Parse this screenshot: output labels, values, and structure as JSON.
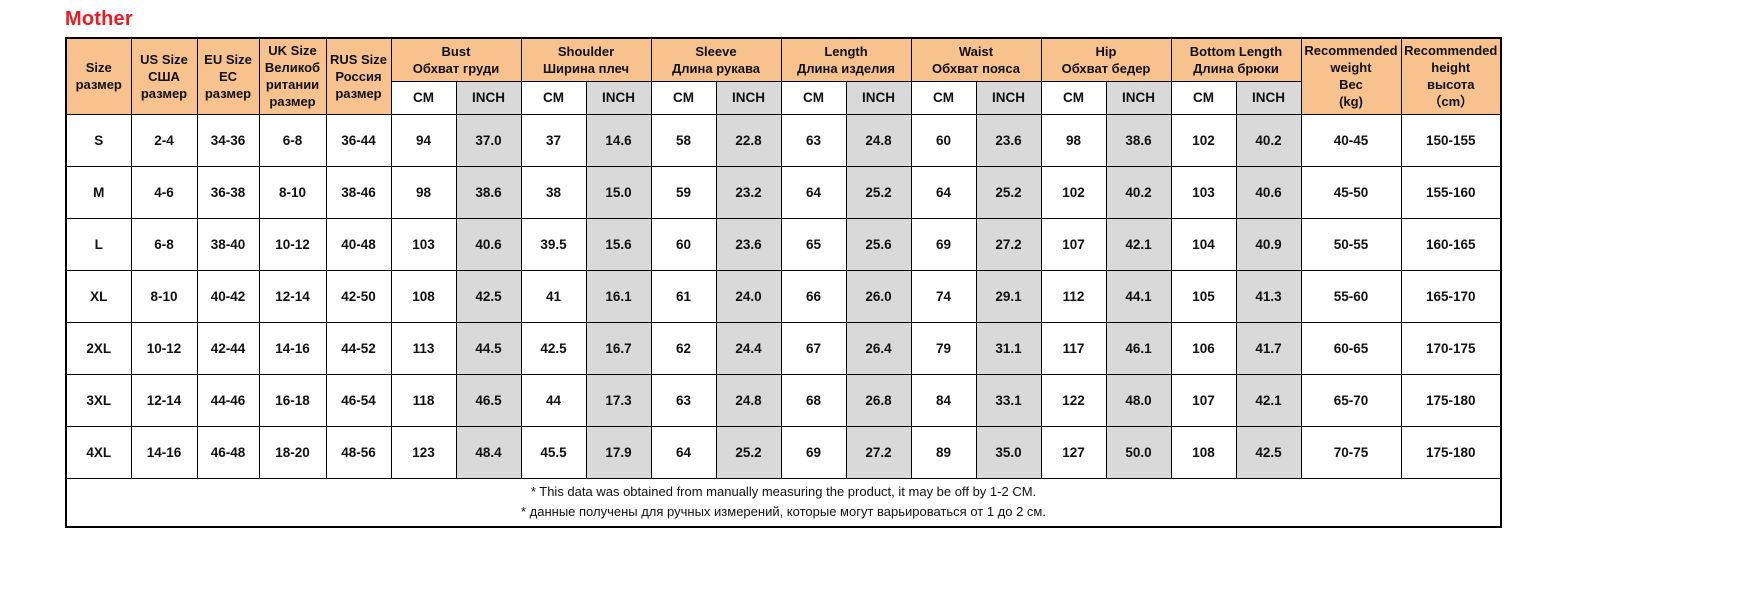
{
  "title": "Mother",
  "colors": {
    "title_red": "#ED1C24",
    "header_bg": "#F7C28D",
    "inch_bg": "#D9D9D9",
    "border": "#000000"
  },
  "chart_data": {
    "type": "table",
    "title": "Mother",
    "unit_headers": [
      "CM",
      "INCH"
    ],
    "columns": [
      {
        "type": "single",
        "lines": [
          "Size",
          "размер"
        ]
      },
      {
        "type": "single",
        "lines": [
          "US Size",
          "США",
          "размер"
        ]
      },
      {
        "type": "single",
        "lines": [
          "EU Size",
          "EC",
          "размер"
        ]
      },
      {
        "type": "single",
        "lines": [
          "UK Size",
          "Великоб",
          "ритании",
          "размер"
        ]
      },
      {
        "type": "single",
        "lines": [
          "RUS Size",
          "Россия",
          "размер"
        ]
      },
      {
        "type": "cm_inch",
        "lines": [
          "Bust",
          "Обхват груди"
        ]
      },
      {
        "type": "cm_inch",
        "lines": [
          "Shoulder",
          "Ширина плеч"
        ]
      },
      {
        "type": "cm_inch",
        "lines": [
          "Sleeve",
          "Длина рукава"
        ]
      },
      {
        "type": "cm_inch",
        "lines": [
          "Length",
          "Длина изделия"
        ]
      },
      {
        "type": "cm_inch",
        "lines": [
          "Waist",
          "Обхват пояса"
        ]
      },
      {
        "type": "cm_inch",
        "lines": [
          "Hip",
          "Обхват бедер"
        ]
      },
      {
        "type": "cm_inch",
        "lines": [
          "Bottom Length",
          "Длина брюки"
        ]
      },
      {
        "type": "single",
        "lines": [
          "Recommended",
          "weight",
          "Вес",
          "(kg)"
        ]
      },
      {
        "type": "single",
        "lines": [
          "Recommended",
          "height",
          "высота",
          "（cm）"
        ]
      }
    ],
    "rows": [
      [
        "S",
        "2-4",
        "34-36",
        "6-8",
        "36-44",
        "94",
        "37.0",
        "37",
        "14.6",
        "58",
        "22.8",
        "63",
        "24.8",
        "60",
        "23.6",
        "98",
        "38.6",
        "102",
        "40.2",
        "40-45",
        "150-155"
      ],
      [
        "M",
        "4-6",
        "36-38",
        "8-10",
        "38-46",
        "98",
        "38.6",
        "38",
        "15.0",
        "59",
        "23.2",
        "64",
        "25.2",
        "64",
        "25.2",
        "102",
        "40.2",
        "103",
        "40.6",
        "45-50",
        "155-160"
      ],
      [
        "L",
        "6-8",
        "38-40",
        "10-12",
        "40-48",
        "103",
        "40.6",
        "39.5",
        "15.6",
        "60",
        "23.6",
        "65",
        "25.6",
        "69",
        "27.2",
        "107",
        "42.1",
        "104",
        "40.9",
        "50-55",
        "160-165"
      ],
      [
        "XL",
        "8-10",
        "40-42",
        "12-14",
        "42-50",
        "108",
        "42.5",
        "41",
        "16.1",
        "61",
        "24.0",
        "66",
        "26.0",
        "74",
        "29.1",
        "112",
        "44.1",
        "105",
        "41.3",
        "55-60",
        "165-170"
      ],
      [
        "2XL",
        "10-12",
        "42-44",
        "14-16",
        "44-52",
        "113",
        "44.5",
        "42.5",
        "16.7",
        "62",
        "24.4",
        "67",
        "26.4",
        "79",
        "31.1",
        "117",
        "46.1",
        "106",
        "41.7",
        "60-65",
        "170-175"
      ],
      [
        "3XL",
        "12-14",
        "44-46",
        "16-18",
        "46-54",
        "118",
        "46.5",
        "44",
        "17.3",
        "63",
        "24.8",
        "68",
        "26.8",
        "84",
        "33.1",
        "122",
        "48.0",
        "107",
        "42.1",
        "65-70",
        "175-180"
      ],
      [
        "4XL",
        "14-16",
        "46-48",
        "18-20",
        "48-56",
        "123",
        "48.4",
        "45.5",
        "17.9",
        "64",
        "25.2",
        "69",
        "27.2",
        "89",
        "35.0",
        "127",
        "50.0",
        "108",
        "42.5",
        "70-75",
        "175-180"
      ]
    ],
    "notes": [
      "* This data was obtained from manually measuring the product, it may be off by 1-2 CM.",
      "* данные получены для ручных измерений, которые могут варьироваться от 1 до 2 см."
    ]
  }
}
